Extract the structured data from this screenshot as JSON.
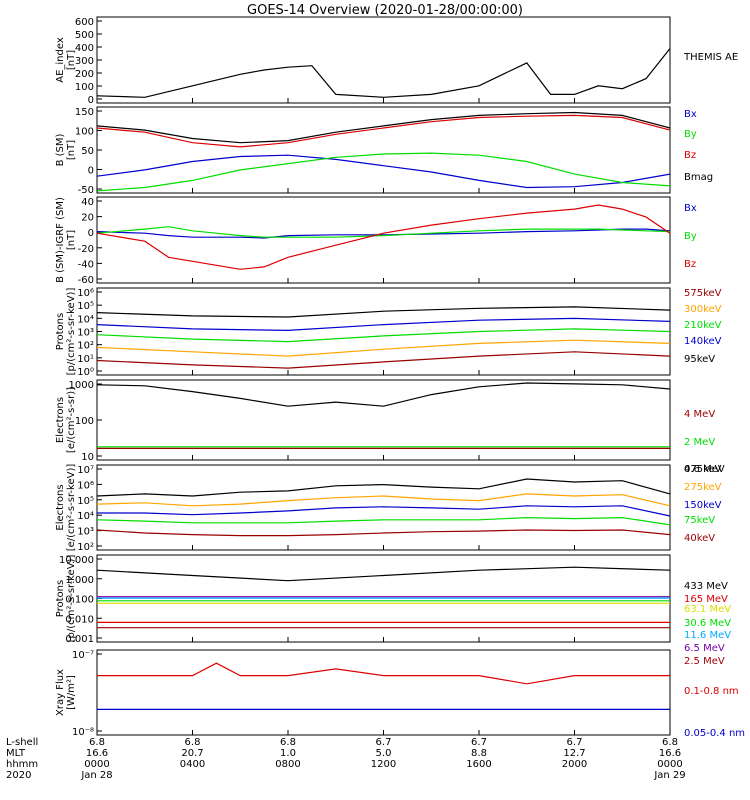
{
  "title": "GOES-14 Overview (2020-01-28/00:00:00)",
  "colors": {
    "black": "#000000",
    "blue": "#0000cc",
    "green": "#00dd00",
    "red": "#dd0000",
    "orange": "#ffa500",
    "darkred": "#990000",
    "purple": "#7a00aa",
    "cyan": "#00aaff",
    "yellow": "#dddd00",
    "gray": "#888888"
  },
  "time_axis": {
    "row_labels": [
      "L-shell",
      "MLT",
      "hhmm",
      "2020"
    ],
    "columns": [
      {
        "lshell": "6.8",
        "mlt": "16.6",
        "hhmm": "0000",
        "date": "Jan 28"
      },
      {
        "lshell": "6.8",
        "mlt": "20.7",
        "hhmm": "0400",
        "date": ""
      },
      {
        "lshell": "6.8",
        "mlt": "1.0",
        "hhmm": "0800",
        "date": ""
      },
      {
        "lshell": "6.7",
        "mlt": "5.0",
        "hhmm": "1200",
        "date": ""
      },
      {
        "lshell": "6.7",
        "mlt": "8.8",
        "hhmm": "1600",
        "date": ""
      },
      {
        "lshell": "6.7",
        "mlt": "12.7",
        "hhmm": "2000",
        "date": ""
      },
      {
        "lshell": "6.8",
        "mlt": "16.6",
        "hhmm": "0000",
        "date": "Jan 29"
      }
    ]
  },
  "chart_data": [
    {
      "type": "line",
      "ylabel": "AE_index\n[nT]",
      "yticks": [
        "600",
        "500",
        "400",
        "300",
        "200",
        "100",
        "0"
      ],
      "ylim": [
        0,
        600
      ],
      "x_hours": [
        0,
        2,
        4,
        5,
        6,
        7,
        8,
        9,
        10,
        12,
        14,
        16,
        17,
        18,
        19,
        20,
        21,
        22,
        23,
        24
      ],
      "series": [
        {
          "name": "THEMIS AE",
          "color": "black",
          "values": [
            50,
            40,
            120,
            160,
            200,
            230,
            250,
            260,
            60,
            40,
            60,
            120,
            200,
            280,
            60,
            60,
            120,
            100,
            170,
            380
          ]
        }
      ]
    },
    {
      "type": "line",
      "ylabel": "B (SM)\n[nT]",
      "yticks": [
        "150",
        "100",
        "50",
        "0",
        "-50"
      ],
      "ylim": [
        -55,
        150
      ],
      "x_hours": [
        0,
        2,
        4,
        6,
        8,
        10,
        12,
        14,
        16,
        18,
        20,
        22,
        24
      ],
      "series": [
        {
          "name": "Bx",
          "color": "blue",
          "values": [
            -15,
            0,
            20,
            32,
            35,
            25,
            10,
            -5,
            -25,
            -42,
            -40,
            -30,
            -10
          ]
        },
        {
          "name": "By",
          "color": "green",
          "values": [
            -50,
            -42,
            -25,
            0,
            15,
            30,
            38,
            40,
            35,
            20,
            -10,
            -30,
            -38
          ]
        },
        {
          "name": "Bz",
          "color": "red",
          "values": [
            100,
            90,
            65,
            55,
            65,
            85,
            100,
            115,
            125,
            128,
            130,
            125,
            95
          ]
        },
        {
          "name": "Bmag",
          "color": "black",
          "values": [
            105,
            95,
            75,
            65,
            70,
            90,
            105,
            120,
            130,
            134,
            137,
            130,
            100
          ]
        }
      ]
    },
    {
      "type": "line",
      "ylabel": "B (SM)-IGRF (SM)\n[nT]",
      "yticks": [
        "40",
        "20",
        "0",
        "-20",
        "-40",
        "-60"
      ],
      "ylim": [
        -62,
        45
      ],
      "x_hours": [
        0,
        2,
        3,
        4,
        5,
        6,
        7,
        8,
        10,
        12,
        14,
        16,
        18,
        20,
        21,
        22,
        23,
        24
      ],
      "series": [
        {
          "name": "Bx",
          "color": "blue",
          "values": [
            2,
            0,
            -3,
            -5,
            -5,
            -5,
            -6,
            -3,
            -2,
            -2,
            -1,
            0,
            2,
            3,
            4,
            5,
            5,
            3
          ]
        },
        {
          "name": "By",
          "color": "green",
          "values": [
            0,
            5,
            8,
            3,
            0,
            -3,
            -5,
            -5,
            -5,
            -3,
            0,
            3,
            5,
            5,
            5,
            4,
            3,
            2
          ]
        },
        {
          "name": "Bz",
          "color": "red",
          "values": [
            0,
            -10,
            -30,
            -35,
            -40,
            -45,
            -42,
            -30,
            -15,
            0,
            10,
            18,
            25,
            30,
            35,
            30,
            20,
            0
          ]
        }
      ]
    },
    {
      "type": "line",
      "ylabel": "Protons\n[p/(cm²-s-sr-keV)]",
      "scale": "log",
      "yticks": [
        "10⁶",
        "10⁵",
        "10⁴",
        "10³",
        "10²",
        "10¹",
        "10⁰"
      ],
      "ylim": [
        1,
        1000000
      ],
      "x_hours": [
        0,
        4,
        8,
        12,
        16,
        20,
        24
      ],
      "series": [
        {
          "name": "575keV",
          "color": "darkred",
          "values": [
            10,
            5,
            3,
            8,
            20,
            40,
            20
          ]
        },
        {
          "name": "300keV",
          "color": "orange",
          "values": [
            80,
            40,
            20,
            60,
            150,
            250,
            150
          ]
        },
        {
          "name": "210keV",
          "color": "green",
          "values": [
            600,
            300,
            200,
            500,
            1000,
            1500,
            1000
          ]
        },
        {
          "name": "140keV",
          "color": "blue",
          "values": [
            3000,
            1500,
            1200,
            3000,
            6000,
            8000,
            5000
          ]
        },
        {
          "name": "95keV",
          "color": "black",
          "values": [
            20000,
            12000,
            10000,
            25000,
            40000,
            50000,
            30000
          ]
        }
      ]
    },
    {
      "type": "line",
      "ylabel": "Electrons\n[e/(cm²-s-sr)]",
      "scale": "log",
      "yticks": [
        "1000",
        "100",
        "10"
      ],
      "ylim": [
        10,
        1200
      ],
      "x_hours": [
        0,
        2,
        4,
        6,
        8,
        10,
        12,
        14,
        16,
        18,
        20,
        22,
        24
      ],
      "series": [
        {
          "name": "4 MeV",
          "color": "darkred",
          "values": [
            20,
            20,
            20,
            20,
            20,
            20,
            20,
            20,
            20,
            20,
            20,
            20,
            20
          ]
        },
        {
          "name": "2 MeV",
          "color": "green",
          "values": [
            22,
            22,
            22,
            22,
            22,
            22,
            22,
            22,
            22,
            22,
            22,
            22,
            22
          ]
        },
        {
          "name": "0.6 MeV",
          "color": "black",
          "values": [
            900,
            850,
            600,
            400,
            250,
            320,
            250,
            500,
            800,
            1000,
            950,
            900,
            700
          ]
        }
      ]
    },
    {
      "type": "line",
      "ylabel": "Electrons\n[e/(cm²-s-sr-keV)]",
      "scale": "log",
      "yticks": [
        "10⁷",
        "10⁶",
        "10⁵",
        "10⁴",
        "10³",
        "10²"
      ],
      "ylim": [
        100,
        10000000
      ],
      "x_hours": [
        0,
        2,
        4,
        6,
        8,
        10,
        12,
        14,
        16,
        18,
        20,
        22,
        24
      ],
      "series": [
        {
          "name": "475keV",
          "color": "black",
          "values": [
            150000,
            200000,
            150000,
            250000,
            300000,
            600000,
            700000,
            500000,
            400000,
            1500000,
            1000000,
            1200000,
            200000
          ]
        },
        {
          "name": "275keV",
          "color": "orange",
          "values": [
            50000,
            60000,
            40000,
            50000,
            80000,
            120000,
            150000,
            100000,
            80000,
            200000,
            150000,
            180000,
            40000
          ]
        },
        {
          "name": "150keV",
          "color": "blue",
          "values": [
            15000,
            15000,
            12000,
            15000,
            20000,
            30000,
            35000,
            30000,
            25000,
            40000,
            35000,
            40000,
            10000
          ]
        },
        {
          "name": "75keV",
          "color": "green",
          "values": [
            6000,
            5000,
            4000,
            4000,
            4000,
            5000,
            6000,
            6000,
            6000,
            8000,
            7000,
            8000,
            3000
          ]
        },
        {
          "name": "40keV",
          "color": "darkred",
          "values": [
            1500,
            1000,
            800,
            700,
            700,
            800,
            1000,
            1200,
            1300,
            1500,
            1400,
            1500,
            800
          ]
        }
      ]
    },
    {
      "type": "line",
      "ylabel": "Protons\n[p/(cm²-s-sr-keV)]",
      "scale": "log",
      "yticks": [
        "10.000",
        "1.000",
        "0.100",
        "0.010",
        "0.001"
      ],
      "ylim": [
        0.0003,
        30
      ],
      "x_hours": [
        0,
        4,
        8,
        12,
        16,
        20,
        24
      ],
      "series": [
        {
          "name": "433 MeV",
          "color": "black",
          "values": [
            4,
            2,
            1,
            2,
            4,
            6,
            4
          ]
        },
        {
          "name": "165 MeV",
          "color": "red",
          "values": [
            0.004,
            0.004,
            0.004,
            0.004,
            0.004,
            0.004,
            0.004
          ]
        },
        {
          "name": "63.1 MeV",
          "color": "yellow",
          "values": [
            0.05,
            0.05,
            0.05,
            0.05,
            0.05,
            0.05,
            0.05
          ]
        },
        {
          "name": "30.6 MeV",
          "color": "green",
          "values": [
            0.07,
            0.07,
            0.07,
            0.07,
            0.07,
            0.07,
            0.07
          ]
        },
        {
          "name": "11.6 MeV",
          "color": "cyan",
          "values": [
            0.1,
            0.1,
            0.1,
            0.1,
            0.1,
            0.1,
            0.1
          ]
        },
        {
          "name": "6.5 MeV",
          "color": "purple",
          "values": [
            0.12,
            0.12,
            0.12,
            0.12,
            0.12,
            0.12,
            0.12
          ]
        },
        {
          "name": "2.5 MeV",
          "color": "darkred",
          "values": [
            0.002,
            0.002,
            0.002,
            0.002,
            0.002,
            0.002,
            0.002
          ]
        }
      ]
    },
    {
      "type": "line",
      "ylabel": "Xray Flux\n[W/m²]",
      "scale": "log",
      "yticks": [
        "10⁻⁷",
        "10⁻⁸"
      ],
      "ylim": [
        1e-08,
        1e-07
      ],
      "x_hours": [
        0,
        4,
        5,
        6,
        8,
        10,
        12,
        14,
        16,
        18,
        20,
        22,
        24
      ],
      "series": [
        {
          "name": "0.1-0.8 nm",
          "color": "red",
          "values": [
            5e-08,
            5e-08,
            7e-08,
            5e-08,
            5e-08,
            6e-08,
            5e-08,
            5e-08,
            5e-08,
            4e-08,
            5e-08,
            5e-08,
            5e-08
          ]
        },
        {
          "name": "0.05-0.4 nm",
          "color": "blue",
          "values": [
            2e-08,
            2e-08,
            2e-08,
            2e-08,
            2e-08,
            2e-08,
            2e-08,
            2e-08,
            2e-08,
            2e-08,
            2e-08,
            2e-08,
            2e-08
          ]
        }
      ]
    }
  ]
}
